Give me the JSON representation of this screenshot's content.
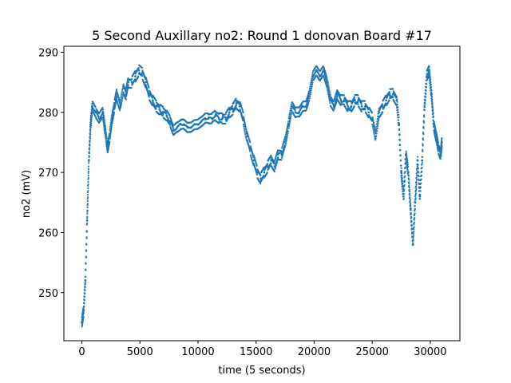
{
  "chart_data": {
    "type": "scatter",
    "title": "5 Second Auxillary no2: Round 1 donovan Board #17",
    "xlabel": "time (5 seconds)",
    "ylabel": "no2 (mV)",
    "xlim": [
      -1550,
      32550
    ],
    "ylim": [
      242,
      291
    ],
    "xticks": [
      0,
      5000,
      10000,
      15000,
      20000,
      25000,
      30000
    ],
    "yticks": [
      250,
      260,
      270,
      280,
      290
    ],
    "grid": false,
    "legend": "none",
    "series_color": "#1f77b4",
    "series": [
      {
        "x": [
          0,
          150,
          300,
          450,
          600,
          750,
          900,
          1200,
          1500,
          1800,
          2000,
          2200,
          2400,
          2600,
          2800,
          3000,
          3300,
          3600,
          3800,
          4000,
          4300,
          4600,
          4900,
          5200,
          5500,
          5800,
          6100,
          6400,
          6700,
          7000,
          7300,
          7600,
          7900,
          8200,
          8500,
          8800,
          9100,
          9400,
          9700,
          10000,
          10300,
          10600,
          10900,
          11200,
          11500,
          11800,
          12100,
          12400,
          12700,
          13000,
          13300,
          13600,
          13900,
          14200,
          14500,
          14800,
          15100,
          15400,
          15700,
          16000,
          16300,
          16600,
          16900,
          17200,
          17500,
          17800,
          18100,
          18400,
          18700,
          19000,
          19300,
          19600,
          19900,
          20200,
          20500,
          20800,
          21100,
          21400,
          21700,
          22000,
          22300,
          22600,
          22900,
          23200,
          23500,
          23800,
          24100,
          24400,
          24700,
          25000,
          25300,
          25600,
          25900,
          26200,
          26500,
          26800,
          27100,
          27300,
          27500,
          27700,
          27900,
          28100,
          28300,
          28500,
          28700,
          28900,
          29100,
          29300,
          29500,
          29700,
          29900,
          30100,
          30300,
          30500,
          30700,
          30900,
          31000
        ],
        "y": [
          245,
          247,
          252,
          262,
          272,
          278,
          281,
          280,
          279,
          280,
          277,
          274,
          276,
          279,
          281,
          283,
          281,
          284,
          283,
          285,
          285,
          286,
          287,
          286.5,
          285,
          283,
          282,
          281,
          280.5,
          280,
          279.5,
          278.5,
          277,
          277.5,
          278,
          278,
          277.5,
          277.5,
          278,
          278,
          278.5,
          279,
          279,
          279,
          279.5,
          279,
          279,
          279,
          280,
          280.5,
          281.5,
          281,
          279,
          276,
          274,
          272,
          270,
          269,
          270,
          271,
          272,
          271,
          273,
          273,
          275,
          278,
          281,
          280,
          280,
          281,
          281,
          283,
          286,
          287,
          286,
          287,
          285,
          282,
          281,
          283,
          282,
          282,
          281,
          281,
          282,
          282,
          281,
          281,
          280,
          279,
          276,
          280,
          281,
          282,
          283,
          283,
          282,
          278,
          270,
          266,
          273,
          270,
          264,
          258,
          265,
          272,
          266,
          272,
          281,
          286,
          287,
          283,
          278,
          276,
          274,
          273,
          275
        ]
      }
    ]
  }
}
